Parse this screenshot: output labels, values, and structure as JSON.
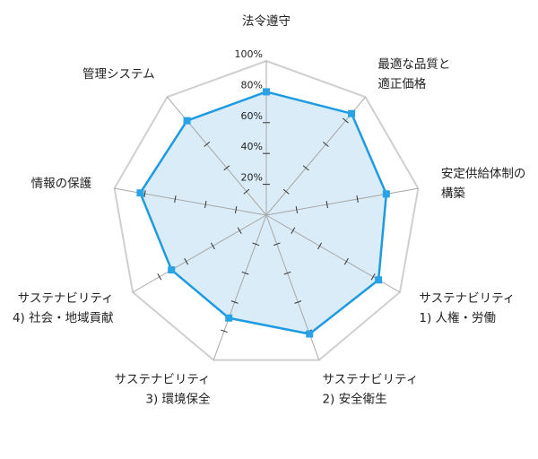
{
  "chart_data": {
    "type": "radar",
    "title": "",
    "axes": [
      [
        "法令遵守"
      ],
      [
        "最適な品質と",
        "適正価格"
      ],
      [
        "安定供給体制の",
        "構築"
      ],
      [
        "サステナビリティ",
        "1) 人権・労働"
      ],
      [
        "サステナビリティ",
        "2) 安全衛生"
      ],
      [
        "サステナビリティ",
        "3) 環境保全"
      ],
      [
        "サステナビリティ",
        "4) 社会・地域貢献"
      ],
      [
        "情報の保護"
      ],
      [
        "管理システム"
      ]
    ],
    "rlim": [
      0,
      100
    ],
    "ticks": [
      20,
      40,
      60,
      80,
      100
    ],
    "tick_labels": [
      "20%",
      "40%",
      "60%",
      "80%",
      "100%"
    ],
    "series": [
      {
        "values": [
          80,
          86,
          79,
          84,
          82,
          71,
          71,
          83,
          80
        ]
      }
    ],
    "colors": {
      "line": "#1e9be0",
      "fill": "#d9ecf7",
      "marker": "#2aa3e6",
      "grid": "#cfcfcf",
      "axis": "#a8a8a8",
      "tick": "#333333"
    }
  }
}
